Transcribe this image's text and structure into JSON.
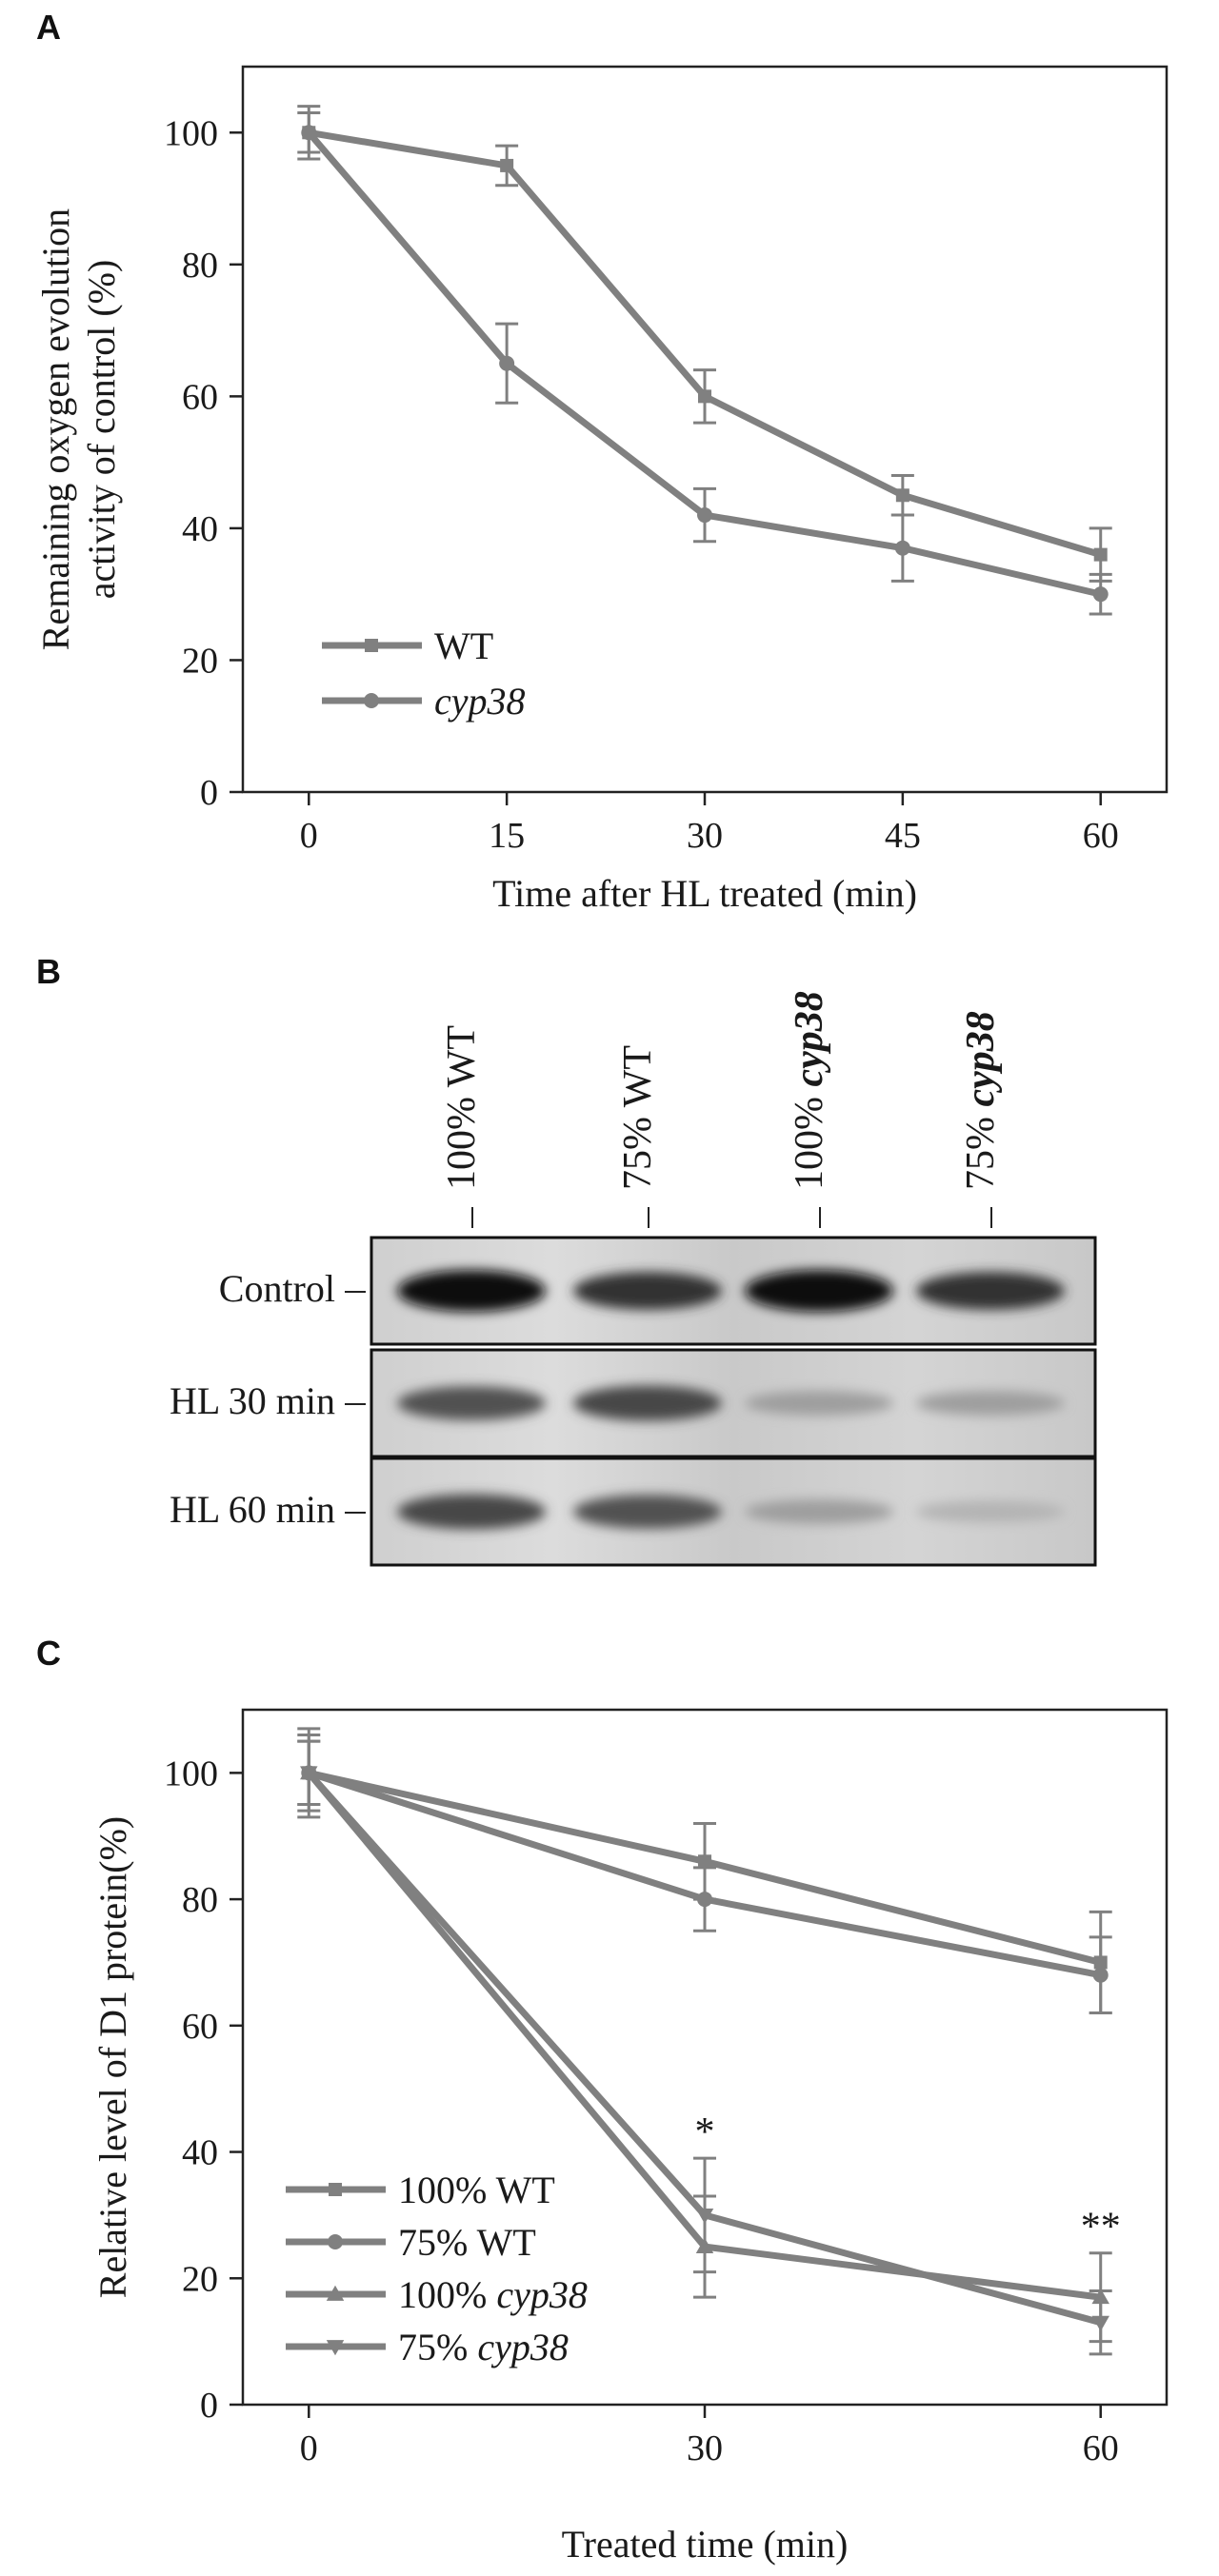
{
  "colors": {
    "series": "#808080",
    "axis": "#222222",
    "text": "#1a1a1a"
  },
  "panels": {
    "a": "A",
    "b": "B",
    "c": "C"
  },
  "chart_data": [
    {
      "type": "line",
      "xlabel": "Time after HL treated (min)",
      "ylabel_line1": "Remaining oxygen evolution",
      "ylabel_line2": "activity of control (%)",
      "x": [
        0,
        15,
        30,
        45,
        60
      ],
      "xlim": [
        -5,
        65
      ],
      "ylim": [
        0,
        110
      ],
      "xticks": [
        "0",
        "15",
        "30",
        "45",
        "60"
      ],
      "yticks": [
        "0",
        "20",
        "40",
        "60",
        "80",
        "100"
      ],
      "legend_position": "bottom-left",
      "series": [
        {
          "name": "WT",
          "marker": "square",
          "values": [
            100,
            95,
            60,
            45,
            36
          ],
          "errors": [
            4,
            3,
            4,
            3,
            4
          ]
        },
        {
          "name": "cyp38",
          "marker": "circle",
          "values": [
            100,
            65,
            42,
            37,
            30
          ],
          "errors": [
            3,
            6,
            4,
            5,
            3
          ]
        }
      ],
      "grid": false
    },
    {
      "type": "line",
      "xlabel": "Treated time (min)",
      "ylabel": "Relative level of D1 protein(%)",
      "x": [
        0,
        30,
        60
      ],
      "xlim": [
        -5,
        65
      ],
      "ylim": [
        0,
        110
      ],
      "xticks": [
        "0",
        "30",
        "60"
      ],
      "yticks": [
        "0",
        "20",
        "40",
        "60",
        "80",
        "100"
      ],
      "legend_position": "bottom-left",
      "series": [
        {
          "name_prefix": "100%",
          "name_gene": "WT",
          "marker": "square",
          "values": [
            100,
            86,
            70
          ],
          "errors": [
            5,
            6,
            8
          ]
        },
        {
          "name_prefix": "75%",
          "name_gene": "WT",
          "marker": "circle",
          "values": [
            100,
            80,
            68
          ],
          "errors": [
            6,
            5,
            6
          ]
        },
        {
          "name_prefix": "100%",
          "name_gene": "cyp38",
          "marker": "triangle-up",
          "values": [
            100,
            25,
            17
          ],
          "errors": [
            7,
            8,
            7
          ]
        },
        {
          "name_prefix": "75%",
          "name_gene": "cyp38",
          "marker": "triangle-down",
          "values": [
            100,
            30,
            13
          ],
          "errors": [
            5,
            9,
            5
          ]
        }
      ],
      "annotations": [
        {
          "x": 30,
          "y": 39,
          "text": "*"
        },
        {
          "x": 60,
          "y": 24,
          "text": "**"
        }
      ],
      "grid": false
    }
  ],
  "blot": {
    "lanes": [
      {
        "prefix": "100%",
        "gene": "WT",
        "italic": false
      },
      {
        "prefix": "75%",
        "gene": "WT",
        "italic": false
      },
      {
        "prefix": "100%",
        "gene": "cyp38",
        "italic": true
      },
      {
        "prefix": "75%",
        "gene": "cyp38",
        "italic": true
      }
    ],
    "rows": [
      {
        "label": "Control",
        "intensity": [
          1.0,
          0.85,
          1.0,
          0.85
        ]
      },
      {
        "label": "HL 30 min",
        "intensity": [
          0.7,
          0.75,
          0.35,
          0.35
        ]
      },
      {
        "label": "HL 60 min",
        "intensity": [
          0.75,
          0.7,
          0.35,
          0.25
        ]
      }
    ]
  }
}
